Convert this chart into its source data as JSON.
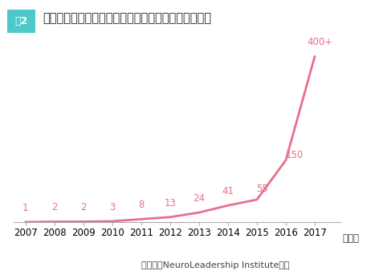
{
  "years": [
    2007,
    2008,
    2009,
    2010,
    2011,
    2012,
    2013,
    2014,
    2015,
    2016,
    2017
  ],
  "values": [
    1,
    2,
    2,
    3,
    8,
    13,
    24,
    41,
    55,
    150,
    400
  ],
  "labels": [
    "1",
    "2",
    "2",
    "3",
    "8",
    "13",
    "24",
    "41",
    "55",
    "150",
    "400+"
  ],
  "line_color": "#e8708a",
  "background_color": "#ffffff",
  "title_text": "米国で人事評価の変革に取り組む世界的大企業の推移",
  "badge_text": "図2",
  "badge_bg": "#4ec8c8",
  "badge_text_color": "#ffffff",
  "xlabel_unit": "（年）",
  "source_text": "（出所）NeuroLeadership Instituteより",
  "ylim": [
    0,
    430
  ],
  "label_color": "#e8708a",
  "label_fontsize": 8.5,
  "title_fontsize": 10.5,
  "source_fontsize": 8,
  "axis_label_fontsize": 8.5,
  "badge_fontsize": 9
}
